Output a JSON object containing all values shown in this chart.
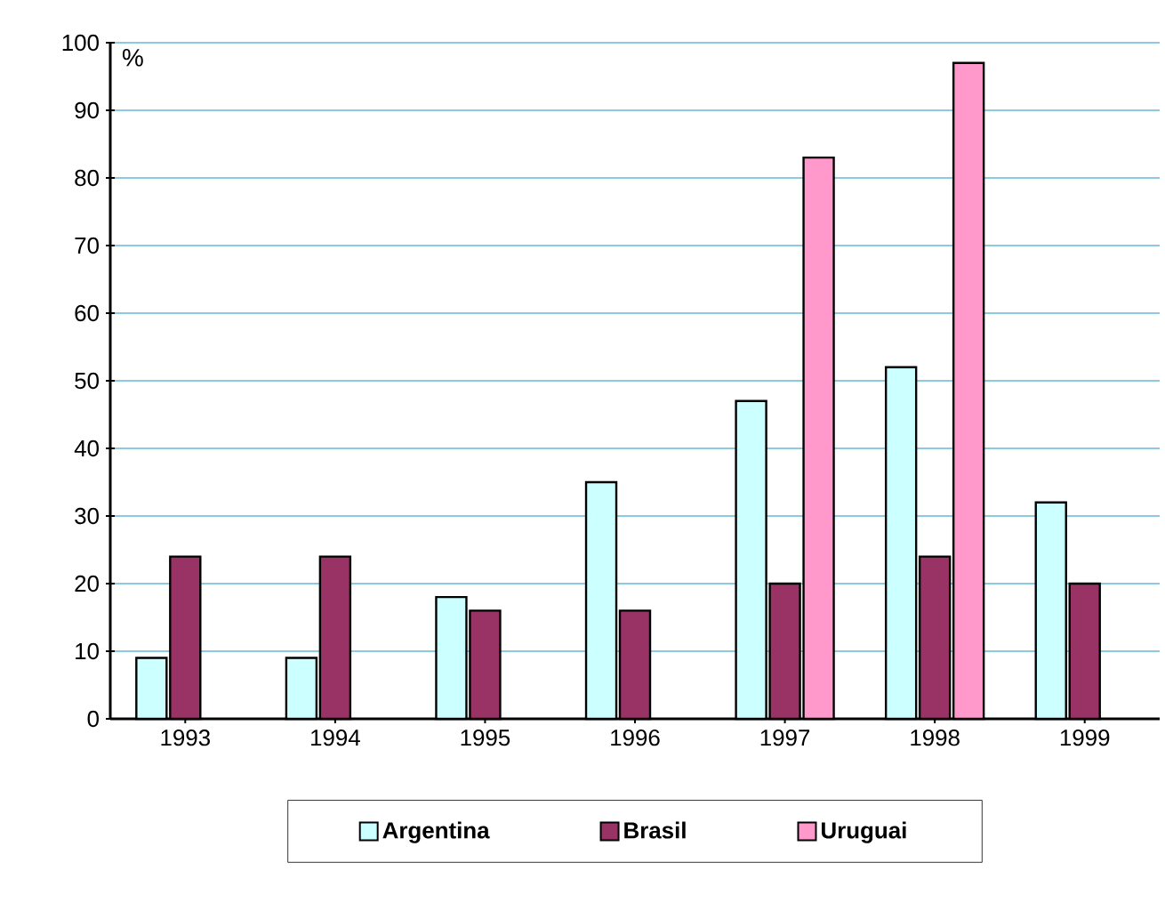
{
  "chart_data": {
    "type": "bar",
    "ylabel": "%",
    "categories": [
      "1993",
      "1994",
      "1995",
      "1996",
      "1997",
      "1998",
      "1999"
    ],
    "series": [
      {
        "name": "Argentina",
        "color": "#ccffff",
        "values": [
          9,
          9,
          18,
          35,
          47,
          52,
          32
        ]
      },
      {
        "name": "Brasil",
        "color": "#993366",
        "values": [
          24,
          24,
          16,
          16,
          20,
          24,
          20
        ]
      },
      {
        "name": "Uruguai",
        "color": "#ff99cc",
        "values": [
          null,
          null,
          null,
          null,
          83,
          97,
          null
        ]
      }
    ],
    "ylim": [
      0,
      100
    ],
    "yticks": [
      0,
      10,
      20,
      30,
      40,
      50,
      60,
      70,
      80,
      90,
      100
    ],
    "grid": "y",
    "legend": "bottom"
  }
}
